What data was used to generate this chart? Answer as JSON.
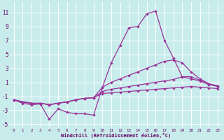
{
  "xlabel": "Windchill (Refroidissement éolien,°C)",
  "bg_color": "#c8ecec",
  "grid_color": "#ffffff",
  "line_color": "#993399",
  "x": [
    0,
    1,
    2,
    3,
    4,
    5,
    6,
    7,
    8,
    9,
    10,
    11,
    12,
    13,
    14,
    15,
    16,
    17,
    18,
    19,
    20,
    21,
    22,
    23
  ],
  "line_spike": [
    -1.5,
    -2.0,
    -2.2,
    -2.1,
    -4.3,
    -2.8,
    -3.3,
    -3.5,
    -3.5,
    -3.7,
    0.3,
    3.8,
    6.3,
    8.8,
    9.0,
    10.8,
    11.2,
    7.0,
    4.5,
    1.8,
    1.5,
    1.2,
    0.7,
    0.5
  ],
  "line_upper": [
    -1.5,
    -1.8,
    -2.0,
    -2.0,
    -2.2,
    -2.0,
    -1.8,
    -1.5,
    -1.3,
    -1.2,
    0.3,
    1.0,
    1.5,
    2.0,
    2.5,
    3.0,
    3.5,
    4.0,
    4.2,
    3.8,
    2.5,
    1.5,
    0.8,
    0.5
  ],
  "line_mid": [
    -1.5,
    -1.8,
    -2.0,
    -2.0,
    -2.2,
    -2.0,
    -1.8,
    -1.5,
    -1.3,
    -1.2,
    -0.3,
    0.0,
    0.2,
    0.4,
    0.6,
    0.8,
    1.0,
    1.2,
    1.4,
    1.8,
    1.8,
    1.3,
    0.7,
    0.4
  ],
  "line_lower": [
    -1.5,
    -1.8,
    -2.0,
    -2.0,
    -2.2,
    -2.0,
    -1.8,
    -1.5,
    -1.3,
    -1.2,
    -0.6,
    -0.5,
    -0.4,
    -0.3,
    -0.2,
    -0.1,
    0.0,
    0.1,
    0.2,
    0.3,
    0.4,
    0.3,
    0.2,
    0.1
  ],
  "ylim": [
    -5.5,
    12.5
  ],
  "xlim": [
    -0.5,
    23.5
  ],
  "yticks": [
    -5,
    -3,
    -1,
    1,
    3,
    5,
    7,
    9,
    11
  ],
  "xticks": [
    0,
    1,
    2,
    3,
    4,
    5,
    6,
    7,
    8,
    9,
    10,
    11,
    12,
    13,
    14,
    15,
    16,
    17,
    18,
    19,
    20,
    21,
    22,
    23
  ]
}
